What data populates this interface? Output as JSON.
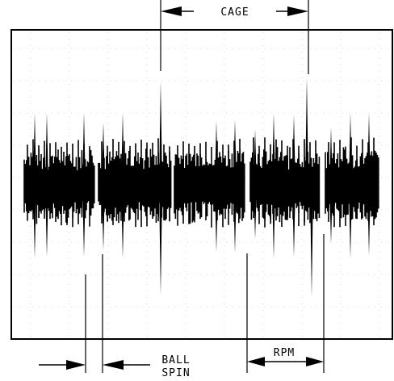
{
  "labels": {
    "cage": "CAGE",
    "ball_spin_line1": "BALL",
    "ball_spin_line2": "SPIN",
    "rpm": "RPM"
  },
  "colors": {
    "ink": "#000000",
    "background": "#ffffff"
  },
  "grid": {
    "visible": true,
    "style": "dotted"
  }
}
